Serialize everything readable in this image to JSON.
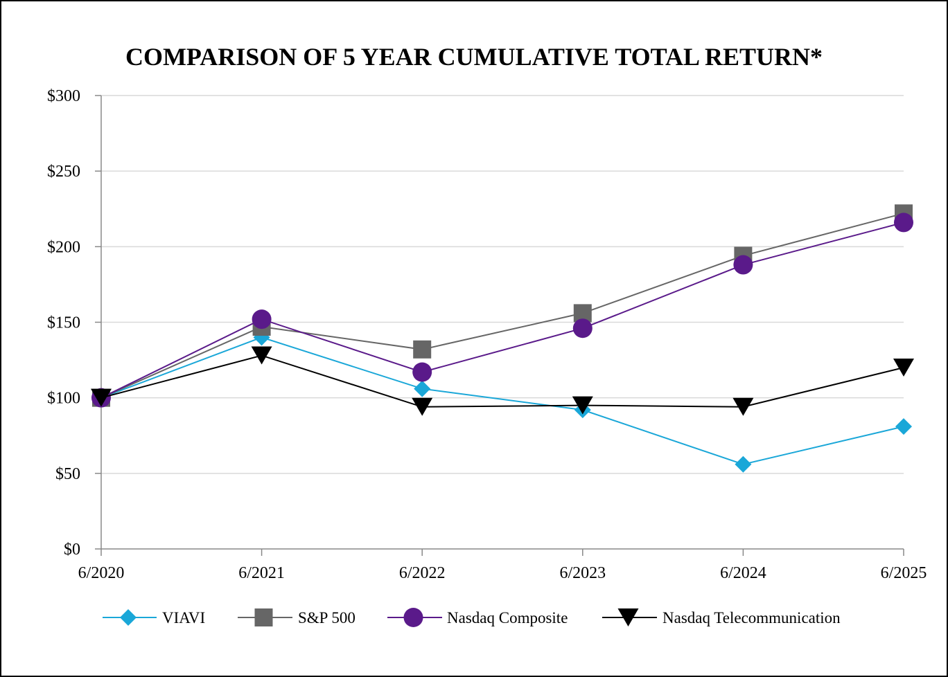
{
  "chart_data": {
    "type": "line",
    "title": "COMPARISON OF 5 YEAR CUMULATIVE TOTAL RETURN*",
    "xlabel": "",
    "ylabel": "",
    "categories": [
      "6/2020",
      "6/2021",
      "6/2022",
      "6/2023",
      "6/2024",
      "6/2025"
    ],
    "y_ticks": [
      "$0",
      "$50",
      "$100",
      "$150",
      "$200",
      "$250",
      "$300"
    ],
    "ylim": [
      0,
      300
    ],
    "grid": "horizontal",
    "legend_position": "bottom",
    "series": [
      {
        "name": "VIAVI",
        "marker": "diamond",
        "color": "#1AA7D8",
        "values": [
          100,
          140,
          106,
          92,
          56,
          81
        ]
      },
      {
        "name": "S&P 500",
        "marker": "square",
        "color": "#666666",
        "values": [
          100,
          147,
          132,
          156,
          194,
          222
        ]
      },
      {
        "name": "Nasdaq Composite",
        "marker": "circle",
        "color": "#5A1A8A",
        "values": [
          100,
          152,
          117,
          146,
          188,
          216
        ]
      },
      {
        "name": "Nasdaq Telecommunication",
        "marker": "triangle-down",
        "color": "#000000",
        "values": [
          100,
          128,
          94,
          95,
          94,
          120
        ]
      }
    ]
  }
}
